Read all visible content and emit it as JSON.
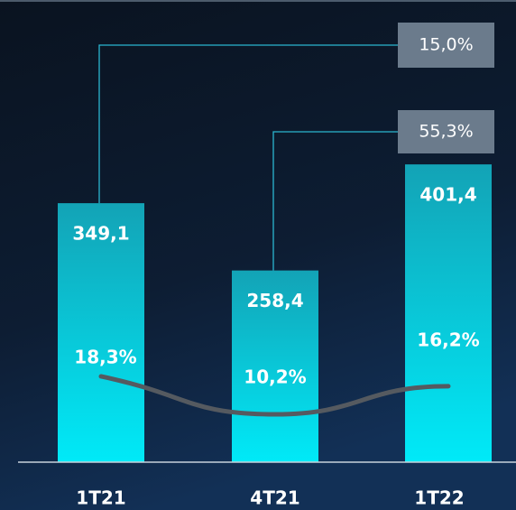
{
  "chart_data": {
    "type": "bar",
    "categories": [
      "1T21",
      "4T21",
      "1T22"
    ],
    "series": [
      {
        "type": "bar",
        "color": "#00e5f5",
        "values": [
          349.1,
          258.4,
          401.4
        ],
        "value_labels": [
          "349,1",
          "258,4",
          "401,4"
        ]
      },
      {
        "type": "line",
        "axis": "y2",
        "color": "#555a60",
        "values": [
          18.3,
          10.2,
          16.2
        ],
        "value_labels": [
          "18,3%",
          "10,2%",
          "16,2%"
        ]
      }
    ],
    "annotations": [
      "15,0%",
      "55,3%"
    ],
    "ylim": [
      0,
      623
    ],
    "y2lim": [
      0,
      98.6
    ]
  }
}
